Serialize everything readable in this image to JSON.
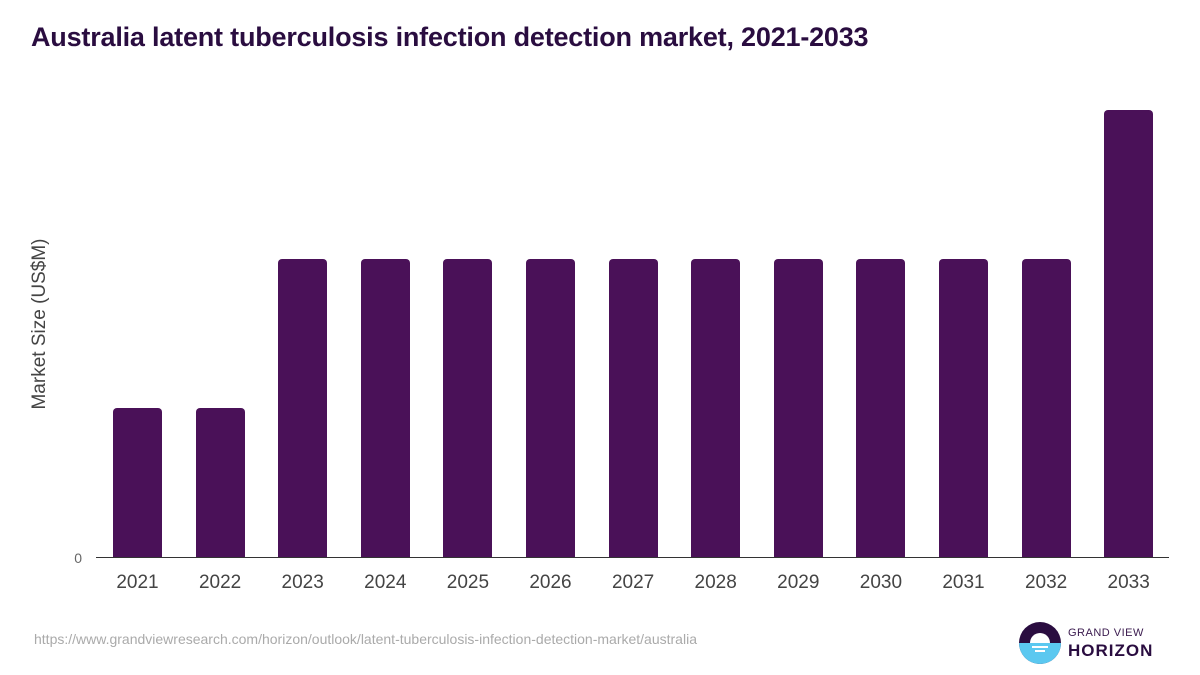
{
  "title": "Australia latent tuberculosis infection detection market, 2021-2033",
  "y_axis_label": "Market Size (US$M)",
  "y_zero_label": "0",
  "source_url": "https://www.grandviewresearch.com/horizon/outlook/latent-tuberculosis-infection-detection-market/australia",
  "logo": {
    "line1": "GRAND VIEW",
    "line2": "HORIZON"
  },
  "colors": {
    "bar": "#4a1158",
    "title": "#2a0d40",
    "logo_dark": "#2a0d40",
    "logo_light": "#5bc8f0"
  },
  "chart_data": {
    "type": "bar",
    "title": "Australia latent tuberculosis infection detection market, 2021-2033",
    "xlabel": "",
    "ylabel": "Market Size (US$M)",
    "categories": [
      "2021",
      "2022",
      "2023",
      "2024",
      "2025",
      "2026",
      "2027",
      "2028",
      "2029",
      "2030",
      "2031",
      "2032",
      "2033"
    ],
    "values": [
      1,
      1,
      2,
      2,
      2,
      2,
      2,
      2,
      2,
      2,
      2,
      2,
      3
    ],
    "value_note": "Relative bar heights; no y-axis scale shown except 0",
    "ylim": [
      0,
      3.2
    ],
    "grid": false,
    "legend": null
  }
}
